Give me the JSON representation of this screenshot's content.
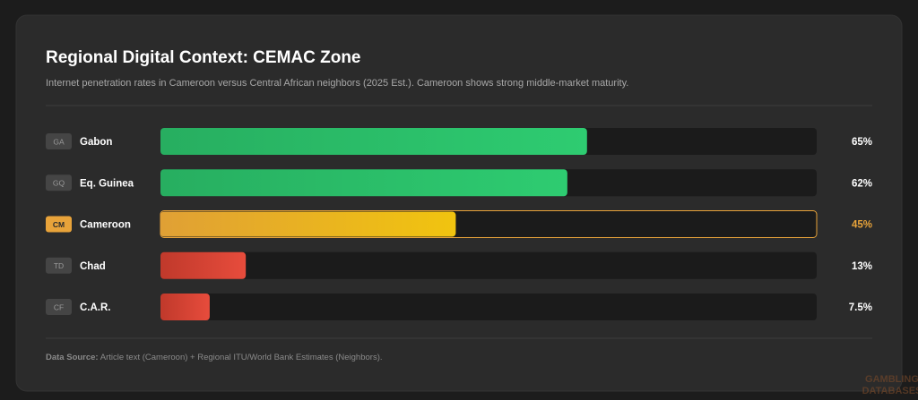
{
  "chart_data": {
    "type": "bar",
    "orientation": "horizontal",
    "title": "Regional Digital Context: CEMAC Zone",
    "subtitle": "Internet penetration rates in Cameroon versus Central African neighbors (2025 Est.). Cameroon shows strong middle-market maturity.",
    "categories": [
      "Gabon",
      "Eq. Guinea",
      "Cameroon",
      "Chad",
      "C.A.R."
    ],
    "codes": [
      "GA",
      "GQ",
      "CM",
      "TD",
      "CF"
    ],
    "values": [
      65,
      62,
      45,
      13,
      7.5
    ],
    "value_labels": [
      "65%",
      "62%",
      "45%",
      "13%",
      "7.5%"
    ],
    "colors": [
      "#2ecc71",
      "#2ecc71",
      "#f1c40f",
      "#e74c3c",
      "#e74c3c"
    ],
    "colors_start": [
      "#27ae60",
      "#27ae60",
      "#e0a035",
      "#c0392b",
      "#c0392b"
    ],
    "highlight": "Cameroon",
    "highlight_color": "#e8a33a",
    "xlim": [
      0,
      100
    ],
    "source_label": "Data Source:",
    "source_text": "Article text (Cameroon) + Regional ITU/World Bank Estimates (Neighbors).",
    "watermark": [
      "GAMBLING",
      "DATABASES"
    ]
  }
}
